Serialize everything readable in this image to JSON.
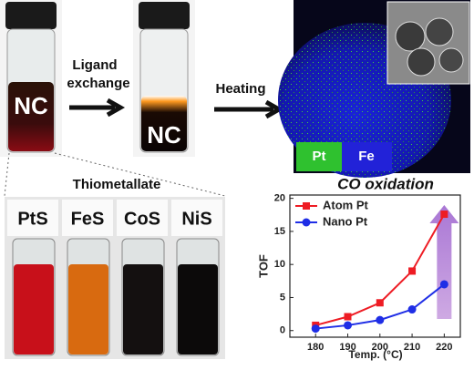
{
  "figure": {
    "nc_left": "NC",
    "ligand_exchange": [
      "Ligand",
      "exchange"
    ],
    "nc_middle": "NC",
    "heating": "Heating",
    "map_labels": [
      "Pt",
      "Fe"
    ],
    "thiometallate": "Thiometallate",
    "vials": [
      "PtS",
      "FeS",
      "CoS",
      "NiS"
    ]
  },
  "chart_data": {
    "type": "line",
    "title": "CO oxidation",
    "x_label": "Temp. (°C)",
    "y_label": "TOF",
    "x": [
      180,
      190,
      200,
      210,
      220
    ],
    "series": [
      {
        "name": "Atom Pt",
        "color": "#ee1c24",
        "marker": "square",
        "values": [
          0.8,
          2.1,
          4.2,
          9.0,
          17.6
        ]
      },
      {
        "name": "Nano Pt",
        "color": "#1f2ee6",
        "marker": "circle",
        "values": [
          0.3,
          0.8,
          1.6,
          3.2,
          7.0
        ]
      }
    ],
    "xlim": [
      172,
      225
    ],
    "ylim": [
      -1,
      20.5
    ],
    "xticks": [
      180,
      190,
      200,
      210,
      220
    ],
    "yticks": [
      0,
      5,
      10,
      15,
      20
    ],
    "legend": "upper left"
  }
}
